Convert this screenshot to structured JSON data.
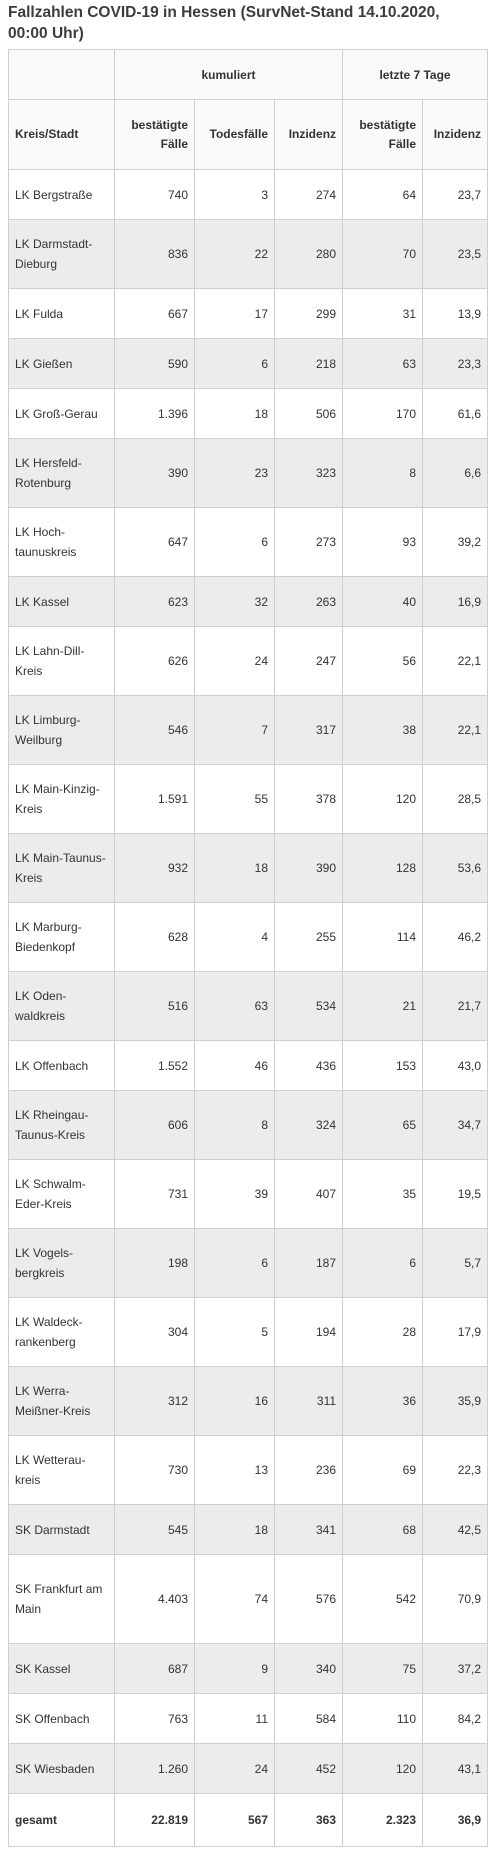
{
  "title": "Fallzahlen COVID-19 in Hessen (SurvNet-Stand 14.10.2020, 00:00 Uhr)",
  "group_headers": {
    "cumulative": "kumuliert",
    "last7": "letzte 7 Tage"
  },
  "columns": [
    "Kreis/Stadt",
    "bestätigte Fälle",
    "Todesfälle",
    "Inzidenz",
    "bestätigte Fälle",
    "Inzidenz"
  ],
  "rows": [
    [
      "LK Bergstraße",
      "740",
      "3",
      "274",
      "64",
      "23,7"
    ],
    [
      "LK Darmstadt-Dieburg",
      "836",
      "22",
      "280",
      "70",
      "23,5"
    ],
    [
      "LK Fulda",
      "667",
      "17",
      "299",
      "31",
      "13,9"
    ],
    [
      "LK Gießen",
      "590",
      "6",
      "218",
      "63",
      "23,3"
    ],
    [
      "LK Groß-Gerau",
      "1.396",
      "18",
      "506",
      "170",
      "61,6"
    ],
    [
      "LK Hersfeld-Rotenburg",
      "390",
      "23",
      "323",
      "8",
      "6,6"
    ],
    [
      "LK Hoch-taunuskreis",
      "647",
      "6",
      "273",
      "93",
      "39,2"
    ],
    [
      "LK Kassel",
      "623",
      "32",
      "263",
      "40",
      "16,9"
    ],
    [
      "LK Lahn-Dill-Kreis",
      "626",
      "24",
      "247",
      "56",
      "22,1"
    ],
    [
      "LK Limburg-Weilburg",
      "546",
      "7",
      "317",
      "38",
      "22,1"
    ],
    [
      "LK Main-Kinzig-Kreis",
      "1.591",
      "55",
      "378",
      "120",
      "28,5"
    ],
    [
      "LK Main-Taunus-Kreis",
      "932",
      "18",
      "390",
      "128",
      "53,6"
    ],
    [
      "LK Marburg-Biedenkopf",
      "628",
      "4",
      "255",
      "114",
      "46,2"
    ],
    [
      "LK Oden-waldkreis",
      "516",
      "63",
      "534",
      "21",
      "21,7"
    ],
    [
      "LK Offenbach",
      "1.552",
      "46",
      "436",
      "153",
      "43,0"
    ],
    [
      "LK Rheingau-Taunus-Kreis",
      "606",
      "8",
      "324",
      "65",
      "34,7"
    ],
    [
      "LK Schwalm-Eder-Kreis",
      "731",
      "39",
      "407",
      "35",
      "19,5"
    ],
    [
      "LK Vogels-bergkreis",
      "198",
      "6",
      "187",
      "6",
      "5,7"
    ],
    [
      "LK Waldeck-rankenberg",
      "304",
      "5",
      "194",
      "28",
      "17,9"
    ],
    [
      "LK Werra-Meißner-Kreis",
      "312",
      "16",
      "311",
      "36",
      "35,9"
    ],
    [
      "LK Wetterau-kreis",
      "730",
      "13",
      "236",
      "69",
      "22,3"
    ],
    [
      "SK Darmstadt",
      "545",
      "18",
      "341",
      "68",
      "42,5"
    ],
    [
      "SK Frankfurt am Main",
      "4.403",
      "74",
      "576",
      "542",
      "70,9"
    ],
    [
      "SK Kassel",
      "687",
      "9",
      "340",
      "75",
      "37,2"
    ],
    [
      "SK Offenbach",
      "763",
      "11",
      "584",
      "110",
      "84,2"
    ],
    [
      "SK Wiesbaden",
      "1.260",
      "24",
      "452",
      "120",
      "43,1"
    ]
  ],
  "total": [
    "gesamt",
    "22.819",
    "567",
    "363",
    "2.323",
    "36,9"
  ]
}
